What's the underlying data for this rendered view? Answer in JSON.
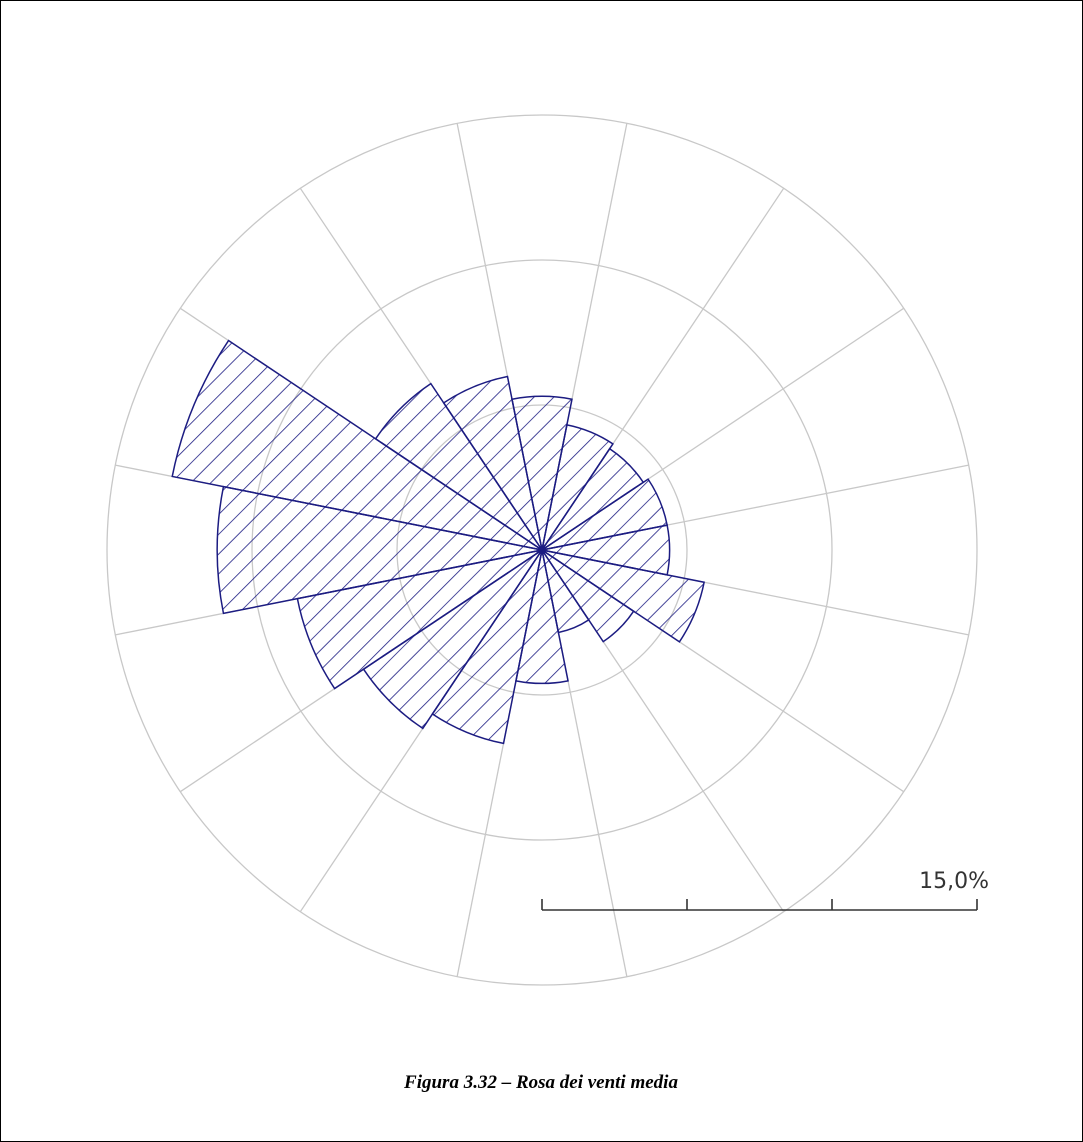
{
  "chart_data": {
    "type": "windrose",
    "caption": "Figura 3.32 – Rosa dei venti media",
    "categories": [
      null,
      null,
      null,
      null,
      null,
      null,
      null,
      null,
      null,
      null,
      null,
      null,
      null,
      null,
      null,
      null
    ],
    "values": [
      5.3,
      4.4,
      4.2,
      4.4,
      4.4,
      5.7,
      3.8,
      2.9,
      4.6,
      6.8,
      7.4,
      8.6,
      11.2,
      13.0,
      6.9,
      6.1
    ],
    "color": "#1c1c82",
    "rlim": [
      0,
      15
    ],
    "rticks": [
      0,
      5,
      10,
      {
        "value": 15,
        "label": "15,0%"
      }
    ],
    "grid": true
  }
}
